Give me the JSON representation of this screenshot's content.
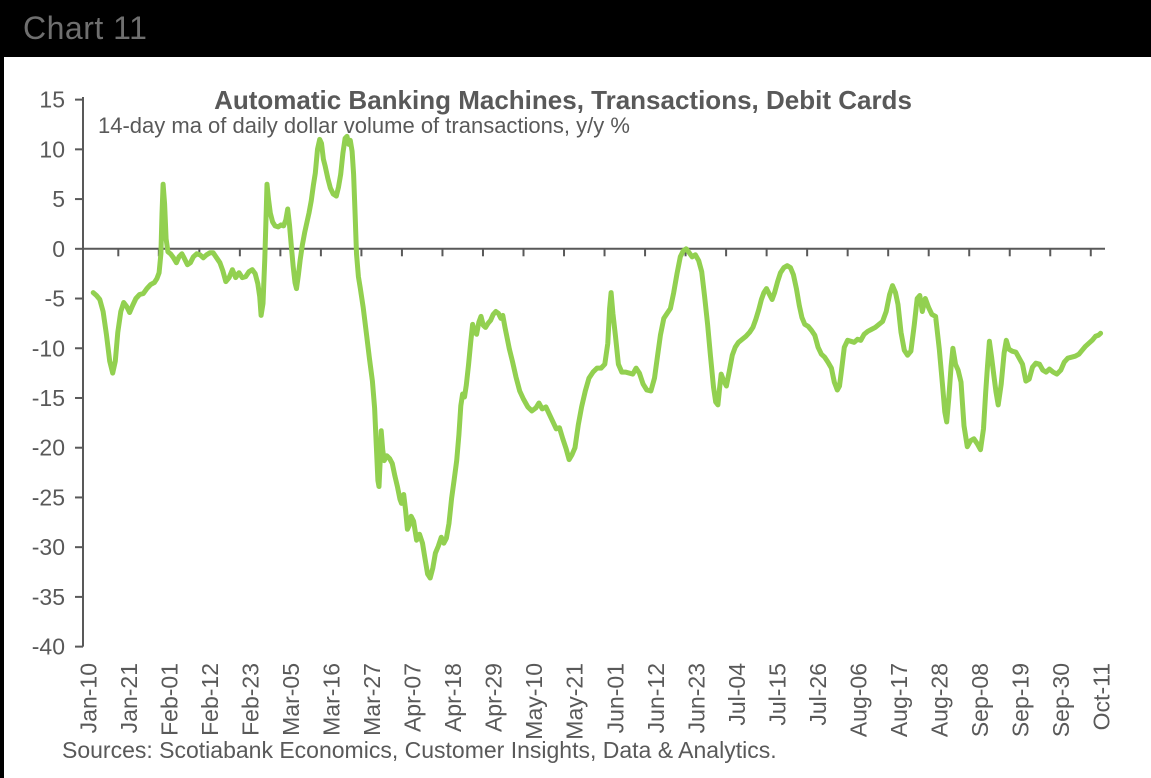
{
  "header": {
    "title": "Chart 11"
  },
  "chart_data": {
    "type": "line",
    "title": "Automatic Banking Machines, Transactions, Debit Cards",
    "subtitle": "14-day ma of daily dollar volume of transactions, y/y %",
    "source_note": "Sources: Scotiabank Economics, Customer Insights, Data & Analytics.",
    "line_color": "#92D050",
    "axis_color": "#595959",
    "text_color": "#595959",
    "ylim": [
      -40,
      15
    ],
    "yticks": [
      15,
      10,
      5,
      0,
      -5,
      -10,
      -15,
      -20,
      -25,
      -30,
      -35,
      -40
    ],
    "x_tick_labels": [
      "Jan-10",
      "Jan-21",
      "Feb-01",
      "Feb-12",
      "Feb-23",
      "Mar-05",
      "Mar-16",
      "Mar-27",
      "Apr-07",
      "Apr-18",
      "Apr-29",
      "May-10",
      "May-21",
      "Jun-01",
      "Jun-12",
      "Jun-23",
      "Jul-04",
      "Jul-15",
      "Jul-26",
      "Aug-06",
      "Aug-17",
      "Aug-28",
      "Sep-08",
      "Sep-19",
      "Sep-30",
      "Oct-11"
    ],
    "x_tick_interval_days": 11,
    "grid": false,
    "legend": false,
    "points": [
      [
        1.4,
        -4.4
      ],
      [
        2.3,
        -4.7
      ],
      [
        3.2,
        -5.1
      ],
      [
        4.1,
        -6.3
      ],
      [
        5,
        -8.6
      ],
      [
        5.9,
        -11.3
      ],
      [
        6.7,
        -12.5
      ],
      [
        7.4,
        -11.3
      ],
      [
        8.1,
        -8.4
      ],
      [
        8.9,
        -6.3
      ],
      [
        9.7,
        -5.4
      ],
      [
        10.5,
        -5.8
      ],
      [
        11.3,
        -6.4
      ],
      [
        12.1,
        -5.7
      ],
      [
        13,
        -5
      ],
      [
        14,
        -4.6
      ],
      [
        15,
        -4.5
      ],
      [
        16,
        -4
      ],
      [
        17,
        -3.6
      ],
      [
        18,
        -3.4
      ],
      [
        18.7,
        -3
      ],
      [
        19.3,
        -2.4
      ],
      [
        19.8,
        -0.5
      ],
      [
        20.1,
        3.5
      ],
      [
        20.4,
        6.5
      ],
      [
        20.8,
        4.5
      ],
      [
        21.2,
        1
      ],
      [
        21.7,
        -0.3
      ],
      [
        22.4,
        -0.5
      ],
      [
        23.2,
        -0.9
      ],
      [
        24,
        -1.4
      ],
      [
        24.7,
        -0.8
      ],
      [
        25.5,
        -0.5
      ],
      [
        26.2,
        -1
      ],
      [
        27,
        -1.6
      ],
      [
        27.8,
        -1.4
      ],
      [
        28.6,
        -0.8
      ],
      [
        29.5,
        -0.5
      ],
      [
        30.4,
        -0.6
      ],
      [
        31.3,
        -0.9
      ],
      [
        32.2,
        -0.6
      ],
      [
        33.1,
        -0.4
      ],
      [
        34,
        -0.4
      ],
      [
        34.9,
        -0.9
      ],
      [
        35.8,
        -1.4
      ],
      [
        36.6,
        -2.2
      ],
      [
        37.4,
        -3.3
      ],
      [
        38.3,
        -2.9
      ],
      [
        39.2,
        -2.1
      ],
      [
        40.1,
        -2.9
      ],
      [
        41,
        -2.4
      ],
      [
        41.9,
        -2.9
      ],
      [
        42.8,
        -2.8
      ],
      [
        43.7,
        -2.3
      ],
      [
        44.6,
        -2.1
      ],
      [
        45.4,
        -2.5
      ],
      [
        46.1,
        -3.5
      ],
      [
        46.6,
        -4.8
      ],
      [
        47,
        -6.7
      ],
      [
        47.5,
        -5.5
      ],
      [
        48,
        -1
      ],
      [
        48.4,
        4
      ],
      [
        48.6,
        6.5
      ],
      [
        49,
        5
      ],
      [
        49.5,
        3.6
      ],
      [
        50.1,
        2.7
      ],
      [
        50.8,
        2.3
      ],
      [
        51.6,
        2.2
      ],
      [
        52.4,
        2.4
      ],
      [
        53.1,
        2.3
      ],
      [
        53.7,
        2.9
      ],
      [
        54.2,
        4
      ],
      [
        54.7,
        2.4
      ],
      [
        55.2,
        0.3
      ],
      [
        55.7,
        -1.8
      ],
      [
        56.2,
        -3.4
      ],
      [
        56.6,
        -4
      ],
      [
        57.1,
        -2.7
      ],
      [
        57.6,
        -1.1
      ],
      [
        58.2,
        0.4
      ],
      [
        58.8,
        1.6
      ],
      [
        59.4,
        2.6
      ],
      [
        60,
        3.6
      ],
      [
        60.6,
        4.8
      ],
      [
        61.2,
        6.4
      ],
      [
        61.7,
        7.6
      ],
      [
        62.3,
        10
      ],
      [
        62.9,
        11
      ],
      [
        63.4,
        10.6
      ],
      [
        63.9,
        9
      ],
      [
        64.4,
        8.3
      ],
      [
        65.1,
        7.1
      ],
      [
        65.8,
        6.1
      ],
      [
        66.6,
        5.5
      ],
      [
        67.4,
        5.3
      ],
      [
        68,
        6.2
      ],
      [
        68.6,
        7.5
      ],
      [
        69.2,
        9.6
      ],
      [
        69.8,
        11.1
      ],
      [
        70.3,
        11.3
      ],
      [
        70.8,
        10.5
      ],
      [
        71.2,
        10.9
      ],
      [
        71.7,
        9.8
      ],
      [
        72.1,
        7.5
      ],
      [
        72.5,
        3.5
      ],
      [
        72.9,
        -0.5
      ],
      [
        73.4,
        -2.8
      ],
      [
        73.9,
        -3.9
      ],
      [
        74.7,
        -5.9
      ],
      [
        75.6,
        -8.6
      ],
      [
        76.4,
        -11
      ],
      [
        77.2,
        -13.3
      ],
      [
        77.8,
        -16
      ],
      [
        78.3,
        -20
      ],
      [
        78.7,
        -23.3
      ],
      [
        79,
        -23.9
      ],
      [
        79.3,
        -21.5
      ],
      [
        79.6,
        -18.3
      ],
      [
        80,
        -20.2
      ],
      [
        80.4,
        -21.3
      ],
      [
        81.1,
        -20.8
      ],
      [
        81.9,
        -21.1
      ],
      [
        82.6,
        -21.6
      ],
      [
        83.3,
        -22.8
      ],
      [
        84,
        -23.9
      ],
      [
        84.7,
        -25.2
      ],
      [
        85.1,
        -25.6
      ],
      [
        85.7,
        -24.7
      ],
      [
        86.2,
        -26.2
      ],
      [
        86.7,
        -28.2
      ],
      [
        87.2,
        -27.8
      ],
      [
        87.7,
        -26.9
      ],
      [
        88.4,
        -27.4
      ],
      [
        89.2,
        -29.3
      ],
      [
        90,
        -28.7
      ],
      [
        90.8,
        -29.6
      ],
      [
        91.5,
        -31.2
      ],
      [
        92.2,
        -32.7
      ],
      [
        92.9,
        -33.1
      ],
      [
        93.6,
        -32.1
      ],
      [
        94.3,
        -30.6
      ],
      [
        95.1,
        -29.9
      ],
      [
        95.9,
        -29
      ],
      [
        96.6,
        -29.6
      ],
      [
        97.3,
        -29.1
      ],
      [
        98,
        -27.6
      ],
      [
        98.7,
        -25.1
      ],
      [
        99.4,
        -23.2
      ],
      [
        100.1,
        -21.3
      ],
      [
        100.7,
        -18.7
      ],
      [
        101.2,
        -15.8
      ],
      [
        101.7,
        -14.6
      ],
      [
        102.2,
        -14.9
      ],
      [
        102.7,
        -13.7
      ],
      [
        103.3,
        -11.7
      ],
      [
        103.9,
        -9.4
      ],
      [
        104.4,
        -7.6
      ],
      [
        104.9,
        -8.3
      ],
      [
        105.5,
        -8.6
      ],
      [
        106.1,
        -7.4
      ],
      [
        106.7,
        -6.8
      ],
      [
        107.3,
        -7.7
      ],
      [
        107.9,
        -7.9
      ],
      [
        108.6,
        -7.5
      ],
      [
        109.3,
        -7.2
      ],
      [
        110,
        -6.6
      ],
      [
        110.7,
        -6.3
      ],
      [
        111.4,
        -6.5
      ],
      [
        112.1,
        -7
      ],
      [
        112.6,
        -6.7
      ],
      [
        113.2,
        -7.9
      ],
      [
        113.8,
        -9
      ],
      [
        114.4,
        -10.1
      ],
      [
        115.2,
        -11.3
      ],
      [
        116.2,
        -12.9
      ],
      [
        117.2,
        -14.3
      ],
      [
        118.2,
        -15.1
      ],
      [
        119.4,
        -15.9
      ],
      [
        120.5,
        -16.3
      ],
      [
        121.6,
        -16
      ],
      [
        122.4,
        -15.5
      ],
      [
        123.3,
        -16.1
      ],
      [
        124.3,
        -15.9
      ],
      [
        125.2,
        -16.6
      ],
      [
        126.1,
        -17.3
      ],
      [
        127.1,
        -18.1
      ],
      [
        128,
        -18
      ],
      [
        128.9,
        -19.1
      ],
      [
        129.8,
        -20.1
      ],
      [
        130.6,
        -21.2
      ],
      [
        131.4,
        -20.7
      ],
      [
        132.2,
        -20
      ],
      [
        133.1,
        -17.7
      ],
      [
        134,
        -15.9
      ],
      [
        135,
        -14.3
      ],
      [
        136,
        -13
      ],
      [
        137.1,
        -12.4
      ],
      [
        138.2,
        -12
      ],
      [
        139.3,
        -12
      ],
      [
        140.3,
        -11.6
      ],
      [
        141.1,
        -9.5
      ],
      [
        141.6,
        -6
      ],
      [
        142,
        -4.4
      ],
      [
        142.5,
        -6.5
      ],
      [
        143.2,
        -8.8
      ],
      [
        144,
        -11.6
      ],
      [
        144.9,
        -12.4
      ],
      [
        145.9,
        -12.4
      ],
      [
        146.9,
        -12.5
      ],
      [
        147.9,
        -12.6
      ],
      [
        148.8,
        -12
      ],
      [
        149.7,
        -12.5
      ],
      [
        150.7,
        -13.6
      ],
      [
        151.7,
        -14.2
      ],
      [
        152.8,
        -14.3
      ],
      [
        153.8,
        -13
      ],
      [
        154.6,
        -10.8
      ],
      [
        155.4,
        -8.7
      ],
      [
        156.3,
        -7
      ],
      [
        157.2,
        -6.5
      ],
      [
        158.1,
        -6
      ],
      [
        159,
        -4.4
      ],
      [
        159.9,
        -2.5
      ],
      [
        160.8,
        -0.8
      ],
      [
        161.6,
        -0.2
      ],
      [
        162.4,
        0
      ],
      [
        163.2,
        -0.4
      ],
      [
        164,
        -0.8
      ],
      [
        164.9,
        -0.6
      ],
      [
        165.8,
        -1.2
      ],
      [
        166.6,
        -2.3
      ],
      [
        167.4,
        -4.8
      ],
      [
        168.2,
        -7.6
      ],
      [
        169,
        -10.8
      ],
      [
        169.8,
        -13.9
      ],
      [
        170.4,
        -15.4
      ],
      [
        171,
        -15.7
      ],
      [
        171.5,
        -13.9
      ],
      [
        171.9,
        -12.6
      ],
      [
        172.6,
        -13.3
      ],
      [
        173.3,
        -13.8
      ],
      [
        174.1,
        -12.3
      ],
      [
        174.9,
        -10.7
      ],
      [
        175.7,
        -9.9
      ],
      [
        176.6,
        -9.4
      ],
      [
        177.6,
        -9.1
      ],
      [
        178.6,
        -8.8
      ],
      [
        179.6,
        -8.4
      ],
      [
        180.5,
        -7.9
      ],
      [
        181.3,
        -7.1
      ],
      [
        182.1,
        -6.1
      ],
      [
        182.8,
        -5.1
      ],
      [
        183.5,
        -4.4
      ],
      [
        184.2,
        -4
      ],
      [
        185,
        -4.6
      ],
      [
        185.7,
        -5.1
      ],
      [
        186.4,
        -4.4
      ],
      [
        187.2,
        -3.3
      ],
      [
        188,
        -2.4
      ],
      [
        188.9,
        -1.9
      ],
      [
        189.8,
        -1.7
      ],
      [
        190.7,
        -1.9
      ],
      [
        191.5,
        -2.6
      ],
      [
        192.3,
        -4
      ],
      [
        193.1,
        -5.7
      ],
      [
        193.8,
        -6.9
      ],
      [
        194.6,
        -7.6
      ],
      [
        195.5,
        -7.8
      ],
      [
        196.4,
        -8.2
      ],
      [
        197.3,
        -8.7
      ],
      [
        198.2,
        -9.9
      ],
      [
        199.1,
        -10.6
      ],
      [
        200,
        -10.9
      ],
      [
        200.9,
        -11.4
      ],
      [
        201.8,
        -12
      ],
      [
        202.6,
        -13.4
      ],
      [
        203.4,
        -14.2
      ],
      [
        204,
        -13.8
      ],
      [
        204.5,
        -12.4
      ],
      [
        205.3,
        -9.9
      ],
      [
        206.2,
        -9.2
      ],
      [
        207.1,
        -9.3
      ],
      [
        208,
        -9.4
      ],
      [
        208.9,
        -9.1
      ],
      [
        209.8,
        -9.2
      ],
      [
        210.7,
        -8.6
      ],
      [
        211.7,
        -8.3
      ],
      [
        212.7,
        -8.1
      ],
      [
        213.7,
        -7.9
      ],
      [
        214.7,
        -7.6
      ],
      [
        215.7,
        -7.3
      ],
      [
        216.7,
        -6.3
      ],
      [
        217.6,
        -4.6
      ],
      [
        218.4,
        -3.7
      ],
      [
        219.2,
        -4.4
      ],
      [
        219.9,
        -5.6
      ],
      [
        220.7,
        -8.4
      ],
      [
        221.6,
        -10.2
      ],
      [
        222.5,
        -10.7
      ],
      [
        223.4,
        -10.3
      ],
      [
        224.3,
        -7.7
      ],
      [
        225.1,
        -5
      ],
      [
        225.8,
        -4.7
      ],
      [
        226.5,
        -6.3
      ],
      [
        227.3,
        -5
      ],
      [
        228.2,
        -5.9
      ],
      [
        229.1,
        -6.6
      ],
      [
        230.1,
        -6.8
      ],
      [
        231.1,
        -10.1
      ],
      [
        232,
        -13.8
      ],
      [
        232.6,
        -16.4
      ],
      [
        233.1,
        -17.4
      ],
      [
        233.7,
        -14.9
      ],
      [
        234.3,
        -11.8
      ],
      [
        234.8,
        -10
      ],
      [
        235.5,
        -11.6
      ],
      [
        236.2,
        -12.2
      ],
      [
        237,
        -13.4
      ],
      [
        237.8,
        -17.8
      ],
      [
        238.7,
        -19.9
      ],
      [
        239.6,
        -19.3
      ],
      [
        240.5,
        -19.1
      ],
      [
        241.4,
        -19.6
      ],
      [
        242.3,
        -20.2
      ],
      [
        243.1,
        -18.1
      ],
      [
        243.7,
        -14.4
      ],
      [
        244.2,
        -11.8
      ],
      [
        244.7,
        -9.3
      ],
      [
        245.3,
        -10.9
      ],
      [
        245.9,
        -12.7
      ],
      [
        246.5,
        -14.4
      ],
      [
        247.1,
        -15.7
      ],
      [
        247.9,
        -13.6
      ],
      [
        248.7,
        -10.5
      ],
      [
        249.3,
        -9.2
      ],
      [
        250,
        -10.1
      ],
      [
        250.9,
        -10.3
      ],
      [
        251.9,
        -10.4
      ],
      [
        252.8,
        -11
      ],
      [
        253.7,
        -11.6
      ],
      [
        254.6,
        -13.3
      ],
      [
        255.5,
        -13.1
      ],
      [
        256.4,
        -11.9
      ],
      [
        257.3,
        -11.5
      ],
      [
        258.3,
        -11.6
      ],
      [
        259.2,
        -12.2
      ],
      [
        260.1,
        -12.4
      ],
      [
        261,
        -12.1
      ],
      [
        262,
        -12.4
      ],
      [
        263,
        -12.6
      ],
      [
        264.1,
        -12.2
      ],
      [
        265,
        -11.4
      ],
      [
        266,
        -11
      ],
      [
        267,
        -10.9
      ],
      [
        268,
        -10.8
      ],
      [
        269,
        -10.6
      ],
      [
        269.9,
        -10.2
      ],
      [
        270.8,
        -9.8
      ],
      [
        271.7,
        -9.5
      ],
      [
        272.6,
        -9.2
      ],
      [
        273.5,
        -8.8
      ],
      [
        274.3,
        -8.7
      ],
      [
        274.9,
        -8.5
      ]
    ]
  }
}
